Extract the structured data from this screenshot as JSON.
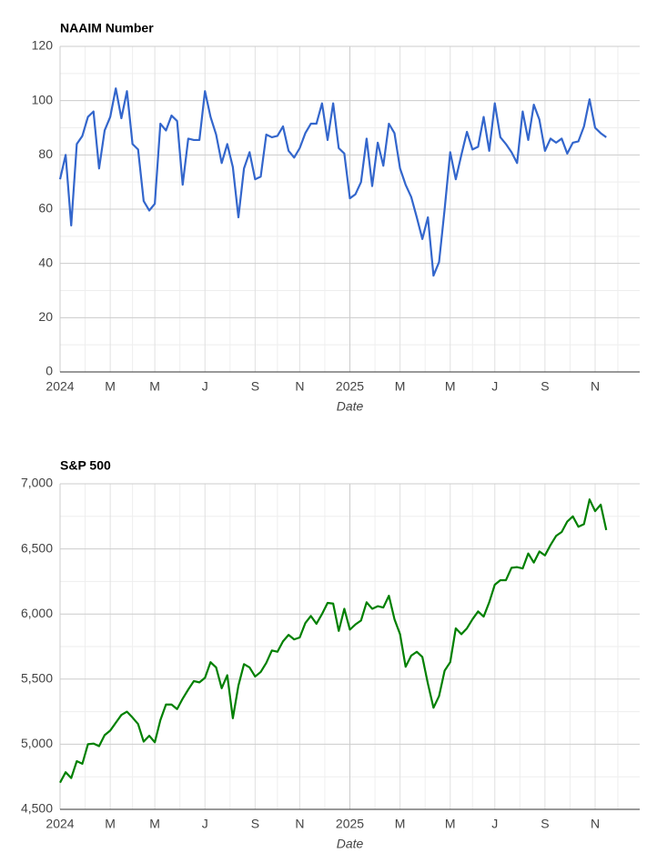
{
  "chart_data": [
    {
      "type": "line",
      "title": "NAAIM Number",
      "x_label": "Date",
      "color": "#3366cc",
      "grid": true,
      "categories": [
        "2024",
        null,
        null,
        null,
        null,
        null,
        null,
        null,
        null,
        "M",
        null,
        null,
        null,
        null,
        null,
        null,
        null,
        "M",
        null,
        null,
        null,
        null,
        null,
        null,
        null,
        null,
        "J",
        null,
        null,
        null,
        null,
        null,
        null,
        null,
        null,
        "S",
        null,
        null,
        null,
        null,
        null,
        null,
        null,
        "N",
        null,
        null,
        null,
        null,
        null,
        null,
        null,
        null,
        "2025",
        null,
        null,
        null,
        null,
        null,
        null,
        null,
        null,
        "M",
        null,
        null,
        null,
        null,
        null,
        null,
        null,
        null,
        "M",
        null,
        null,
        null,
        null,
        null,
        null,
        null,
        "J",
        null,
        null,
        null,
        null,
        null,
        null,
        null,
        null,
        "S",
        null,
        null,
        null,
        null,
        null,
        null,
        null,
        null,
        "N",
        null,
        null,
        null,
        null,
        null,
        null,
        null,
        null
      ],
      "values": [
        71,
        80,
        54,
        84,
        87,
        94,
        96,
        75,
        89,
        94,
        104.5,
        93.5,
        103.5,
        84,
        82,
        63,
        59.5,
        62,
        91.5,
        89,
        94.5,
        92.5,
        69,
        86,
        85.5,
        85.5,
        103.5,
        94,
        87.5,
        77,
        84,
        75.5,
        57,
        75,
        81,
        71,
        72,
        87.5,
        86.5,
        87,
        90.5,
        81.5,
        79,
        82.5,
        88,
        91.5,
        91.5,
        99,
        85.5,
        99,
        82.5,
        80.5,
        64,
        65.5,
        70,
        86,
        68.5,
        84.5,
        76,
        91.5,
        88,
        75,
        69,
        64.5,
        57,
        49,
        57,
        35.5,
        40.5,
        60,
        81,
        71,
        80,
        88.5,
        82,
        83,
        94,
        81.5,
        99,
        86.5,
        84,
        81,
        77,
        96,
        85.5,
        98.5,
        93,
        81.5,
        86,
        84.5,
        86,
        80.5,
        84.5,
        85,
        90.5,
        100.5,
        90,
        88,
        86.5,
        null,
        null,
        null,
        null,
        null,
        null
      ],
      "ylim": [
        0,
        120
      ],
      "yticks": [
        0,
        20,
        40,
        60,
        80,
        100,
        120
      ]
    },
    {
      "type": "line",
      "title": "S&P 500",
      "x_label": "Date",
      "color": "#008000",
      "grid": true,
      "categories": [
        "2024",
        null,
        null,
        null,
        null,
        null,
        null,
        null,
        null,
        "M",
        null,
        null,
        null,
        null,
        null,
        null,
        null,
        "M",
        null,
        null,
        null,
        null,
        null,
        null,
        null,
        null,
        "J",
        null,
        null,
        null,
        null,
        null,
        null,
        null,
        null,
        "S",
        null,
        null,
        null,
        null,
        null,
        null,
        null,
        "N",
        null,
        null,
        null,
        null,
        null,
        null,
        null,
        null,
        "2025",
        null,
        null,
        null,
        null,
        null,
        null,
        null,
        null,
        "M",
        null,
        null,
        null,
        null,
        null,
        null,
        null,
        null,
        "M",
        null,
        null,
        null,
        null,
        null,
        null,
        null,
        "J",
        null,
        null,
        null,
        null,
        null,
        null,
        null,
        null,
        "S",
        null,
        null,
        null,
        null,
        null,
        null,
        null,
        null,
        "N",
        null,
        null,
        null,
        null,
        null,
        null,
        null,
        null
      ],
      "values": [
        4705,
        4785,
        4740,
        4870,
        4850,
        5000,
        5005,
        4985,
        5070,
        5105,
        5165,
        5225,
        5250,
        5205,
        5155,
        5020,
        5065,
        5015,
        5185,
        5305,
        5305,
        5270,
        5350,
        5420,
        5485,
        5475,
        5510,
        5630,
        5590,
        5430,
        5530,
        5200,
        5450,
        5615,
        5590,
        5520,
        5555,
        5625,
        5720,
        5710,
        5790,
        5840,
        5805,
        5820,
        5930,
        5985,
        5925,
        6000,
        6085,
        6080,
        5870,
        6040,
        5880,
        5920,
        5950,
        6090,
        6040,
        6060,
        6050,
        6140,
        5960,
        5845,
        5595,
        5680,
        5710,
        5670,
        5465,
        5280,
        5370,
        5565,
        5630,
        5890,
        5845,
        5890,
        5960,
        6020,
        5980,
        6090,
        6225,
        6260,
        6260,
        6355,
        6360,
        6350,
        6465,
        6395,
        6480,
        6450,
        6530,
        6600,
        6630,
        6710,
        6750,
        6670,
        6690,
        6880,
        6790,
        6840,
        6645,
        null,
        null,
        null,
        null,
        null,
        null
      ],
      "ylim": [
        4500,
        7000
      ],
      "yticks": [
        {
          "value": 4500,
          "label": "4,500"
        },
        {
          "value": 5000,
          "label": "5,000"
        },
        {
          "value": 5500,
          "label": "5,500"
        },
        {
          "value": 6000,
          "label": "6,000"
        },
        {
          "value": 6500,
          "label": "6,500"
        },
        {
          "value": 7000,
          "label": "7,000"
        }
      ]
    }
  ]
}
